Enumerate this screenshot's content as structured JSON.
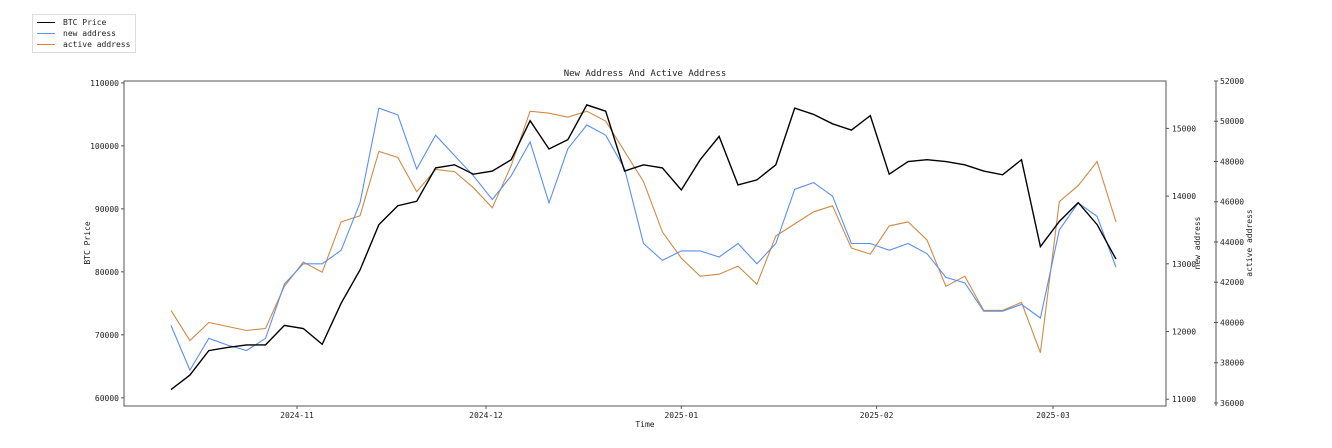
{
  "chart_data": {
    "type": "line",
    "title": "New Address And Active Address",
    "xlabel": "Time",
    "start_date": "2024-10-12",
    "step_days": 3,
    "x_ticks": [
      {
        "label": "2024-11",
        "date": "2024-11-01"
      },
      {
        "label": "2024-12",
        "date": "2024-12-01"
      },
      {
        "label": "2025-01",
        "date": "2025-01-01"
      },
      {
        "label": "2025-02",
        "date": "2025-02-01"
      },
      {
        "label": "2025-03",
        "date": "2025-03-01"
      }
    ],
    "axes": {
      "left": {
        "label": "BTC Price",
        "range": [
          58700,
          110300
        ],
        "ticks": [
          "60000",
          "70000",
          "80000",
          "90000",
          "100000",
          "110000"
        ]
      },
      "right1": {
        "label": "new address",
        "range": [
          10900,
          15700
        ],
        "ticks": [
          "11000",
          "12000",
          "13000",
          "14000",
          "15000"
        ]
      },
      "right2": {
        "label": "active address",
        "range": [
          35850,
          52000
        ],
        "ticks": [
          "36000",
          "38000",
          "40000",
          "42000",
          "44000",
          "46000",
          "48000",
          "50000",
          "52000"
        ]
      }
    },
    "legend_position": "top-left",
    "series": [
      {
        "name": "BTC Price",
        "axis": "left",
        "color": "#000000",
        "values": [
          61300,
          63600,
          67500,
          68000,
          68400,
          68400,
          71500,
          71000,
          68500,
          75000,
          80300,
          87500,
          90500,
          91200,
          96500,
          97000,
          95500,
          96000,
          97800,
          104000,
          99500,
          101000,
          106500,
          105500,
          96000,
          97000,
          96500,
          93000,
          97800,
          101500,
          93800,
          94600,
          97000,
          106000,
          105000,
          103500,
          102500,
          104800,
          95500,
          97500,
          97800,
          97500,
          97000,
          96000,
          95400,
          97800,
          84000,
          88000,
          91000,
          87500,
          82000
        ]
      },
      {
        "name": "new address",
        "axis": "right1",
        "color": "#5b8ff0",
        "values": [
          12090,
          11430,
          11900,
          11800,
          11720,
          11900,
          12700,
          13000,
          13000,
          13200,
          13900,
          15300,
          15200,
          14400,
          14900,
          14600,
          14300,
          13950,
          14300,
          14800,
          13900,
          14700,
          15050,
          14900,
          14400,
          13300,
          13050,
          13190,
          13190,
          13100,
          13300,
          13000,
          13300,
          14100,
          14200,
          14000,
          13300,
          13300,
          13200,
          13300,
          13150,
          12800,
          12720,
          12300,
          12300,
          12400,
          12200,
          13500,
          13900,
          13700,
          12950
        ]
      },
      {
        "name": "active address",
        "axis": "right2",
        "color": "#d08a45",
        "values": [
          40600,
          39100,
          40000,
          39800,
          39600,
          39700,
          41800,
          43000,
          42500,
          45000,
          45300,
          48500,
          48200,
          46500,
          47600,
          47500,
          46700,
          45700,
          47800,
          50500,
          50400,
          50200,
          50500,
          50000,
          48500,
          47000,
          44500,
          43200,
          42300,
          42400,
          42800,
          41900,
          44300,
          44900,
          45500,
          45800,
          43700,
          43400,
          44800,
          45000,
          44100,
          41800,
          42300,
          40600,
          40600,
          41000,
          38500,
          46000,
          46800,
          48000,
          45000
        ]
      }
    ]
  }
}
